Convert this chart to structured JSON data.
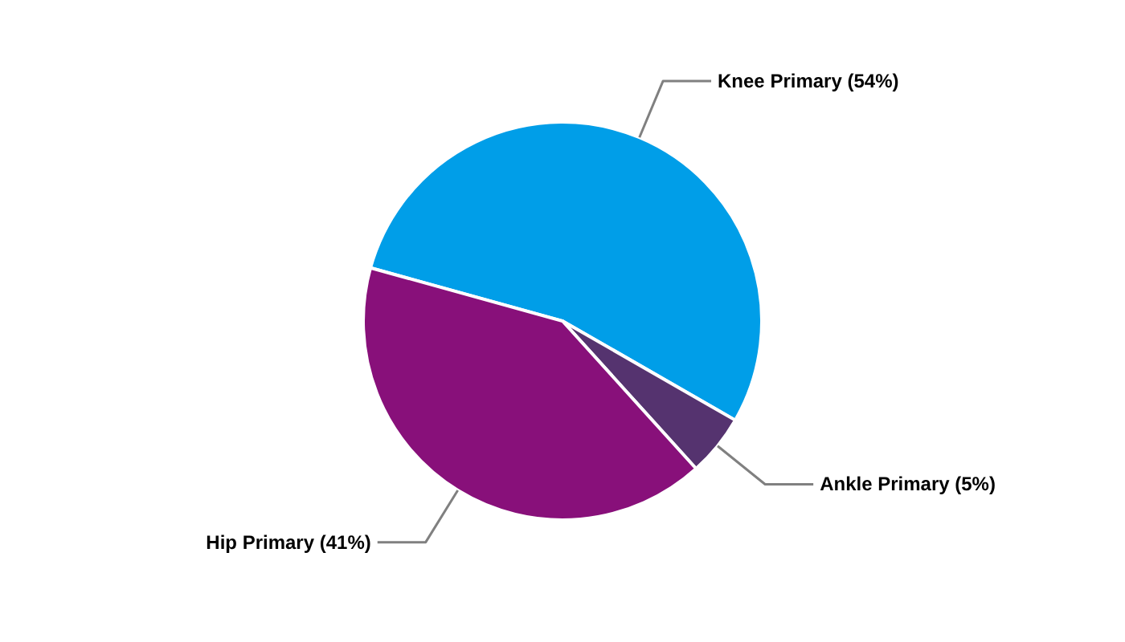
{
  "chart_data": {
    "type": "pie",
    "categories": [
      "Knee Primary (54%)",
      "Ankle Primary (5%)",
      "Hip Primary (41%)"
    ],
    "values": [
      54,
      5,
      41
    ],
    "colors": [
      "#009ee8",
      "#55336f",
      "#88107a"
    ]
  }
}
